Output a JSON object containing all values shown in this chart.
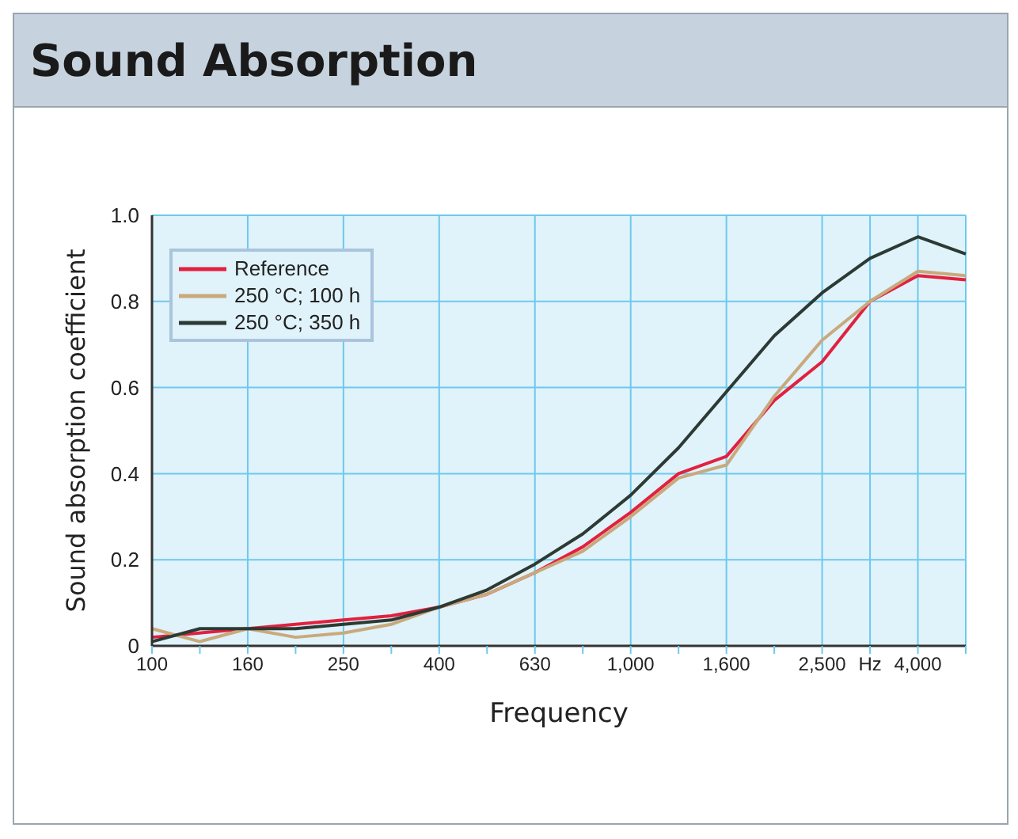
{
  "chart_data": {
    "type": "line",
    "title": "Sound Absorption",
    "xlabel": "Frequency",
    "ylabel": "Sound absorption coefficient",
    "categories": [
      "100",
      null,
      "160",
      null,
      "250",
      null,
      "400",
      null,
      "630",
      null,
      "1,000",
      null,
      "1,600",
      null,
      "2,500",
      "Hz",
      "4,000",
      null
    ],
    "series": [
      {
        "name": "Reference",
        "color": "#e2203f",
        "values": [
          0.02,
          0.03,
          0.04,
          0.05,
          0.06,
          0.07,
          0.09,
          0.12,
          0.17,
          0.23,
          0.31,
          0.4,
          0.44,
          0.57,
          0.66,
          0.8,
          0.86,
          0.85
        ]
      },
      {
        "name": "250 °C; 100 h",
        "color": "#c9a97c",
        "values": [
          0.04,
          0.01,
          0.04,
          0.02,
          0.03,
          0.05,
          0.09,
          0.12,
          0.17,
          0.22,
          0.3,
          0.39,
          0.42,
          0.58,
          0.71,
          0.8,
          0.87,
          0.86
        ]
      },
      {
        "name": "250 °C; 350 h",
        "color": "#2c3a33",
        "values": [
          0.01,
          0.04,
          0.04,
          0.04,
          0.05,
          0.06,
          0.09,
          0.13,
          0.19,
          0.26,
          0.35,
          0.46,
          0.59,
          0.72,
          0.82,
          0.9,
          0.95,
          0.91
        ]
      }
    ],
    "ylim": [
      0,
      1
    ],
    "yticks": [
      0,
      0.2,
      0.4,
      0.6,
      0.8,
      {
        "value": 1,
        "label": "1.0"
      }
    ],
    "grid": true,
    "legend": "top left",
    "marker": "none",
    "line_style": "solid"
  }
}
